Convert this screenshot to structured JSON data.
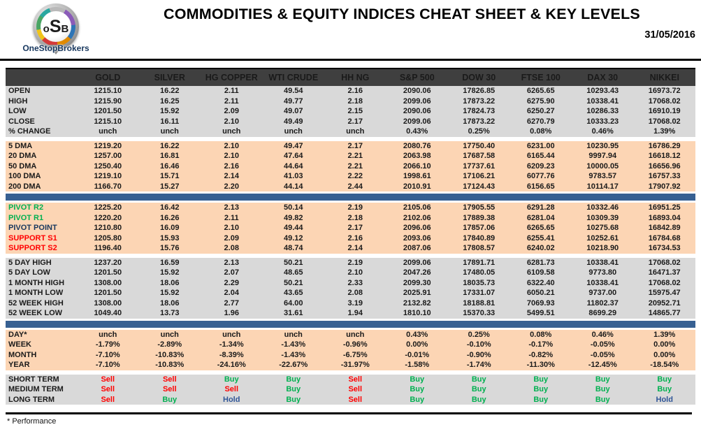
{
  "header": {
    "logo": {
      "monogram": [
        "o",
        "S",
        "B"
      ],
      "name": "OneStopBrokers"
    },
    "title": "COMMODITIES & EQUITY INDICES CHEAT SHEET & KEY LEVELS",
    "date": "31/05/2016"
  },
  "colors": {
    "header_bar": "#3F3F3F",
    "gray_row": "#D9D9D9",
    "peach_row": "#FCD5B4",
    "blue_band": "#376092",
    "green": "#00B050",
    "red": "#FF0000",
    "navy": "#17375E",
    "hold_blue": "#2F5597"
  },
  "table": {
    "columns": [
      "GOLD",
      "SILVER",
      "HG COPPER",
      "WTI CRUDE",
      "HH NG",
      "S&P 500",
      "DOW 30",
      "FTSE 100",
      "DAX 30",
      "NIKKEI"
    ],
    "sections": [
      {
        "id": "quotes",
        "bg": "gray",
        "divider": "none",
        "rows": [
          {
            "label": "OPEN",
            "values": [
              "1215.10",
              "16.22",
              "2.11",
              "49.54",
              "2.16",
              "2090.06",
              "17826.85",
              "6265.65",
              "10293.43",
              "16973.72"
            ]
          },
          {
            "label": "HIGH",
            "values": [
              "1215.90",
              "16.25",
              "2.11",
              "49.77",
              "2.18",
              "2099.06",
              "17873.22",
              "6275.90",
              "10338.41",
              "17068.02"
            ]
          },
          {
            "label": "LOW",
            "values": [
              "1201.50",
              "15.92",
              "2.09",
              "49.07",
              "2.15",
              "2090.06",
              "17824.73",
              "6250.27",
              "10286.33",
              "16910.19"
            ]
          },
          {
            "label": "CLOSE",
            "values": [
              "1215.10",
              "16.11",
              "2.10",
              "49.49",
              "2.17",
              "2099.06",
              "17873.22",
              "6270.79",
              "10333.23",
              "17068.02"
            ]
          },
          {
            "label": "% CHANGE",
            "values": [
              "unch",
              "unch",
              "unch",
              "unch",
              "unch",
              "0.43%",
              "0.25%",
              "0.08%",
              "0.46%",
              "1.39%"
            ]
          }
        ]
      },
      {
        "id": "moving-averages",
        "bg": "peach",
        "divider": "gap",
        "rows": [
          {
            "label": "5 DMA",
            "values": [
              "1219.20",
              "16.22",
              "2.10",
              "49.47",
              "2.17",
              "2080.76",
              "17750.40",
              "6231.00",
              "10230.95",
              "16786.29"
            ]
          },
          {
            "label": "20 DMA",
            "values": [
              "1257.00",
              "16.81",
              "2.10",
              "47.64",
              "2.21",
              "2063.98",
              "17687.58",
              "6165.44",
              "9997.94",
              "16618.12"
            ]
          },
          {
            "label": "50 DMA",
            "values": [
              "1250.40",
              "16.46",
              "2.16",
              "44.64",
              "2.21",
              "2066.10",
              "17737.61",
              "6209.23",
              "10000.05",
              "16656.96"
            ]
          },
          {
            "label": "100 DMA",
            "values": [
              "1219.10",
              "15.71",
              "2.14",
              "41.03",
              "2.22",
              "1998.61",
              "17106.21",
              "6077.76",
              "9783.57",
              "16757.33"
            ]
          },
          {
            "label": "200 DMA",
            "values": [
              "1166.70",
              "15.27",
              "2.20",
              "44.14",
              "2.44",
              "2010.91",
              "17124.43",
              "6156.65",
              "10114.17",
              "17907.92"
            ]
          }
        ]
      },
      {
        "id": "pivots",
        "bg": "peach",
        "divider": "blue",
        "rows": [
          {
            "label": "PIVOT R2",
            "label_color": "green",
            "values": [
              "1225.20",
              "16.42",
              "2.13",
              "50.14",
              "2.19",
              "2105.06",
              "17905.55",
              "6291.28",
              "10332.46",
              "16951.25"
            ]
          },
          {
            "label": "PIVOT R1",
            "label_color": "green",
            "values": [
              "1220.20",
              "16.26",
              "2.11",
              "49.82",
              "2.18",
              "2102.06",
              "17889.38",
              "6281.04",
              "10309.39",
              "16893.04"
            ]
          },
          {
            "label": "PIVOT POINT",
            "label_color": "navy",
            "values": [
              "1210.80",
              "16.09",
              "2.10",
              "49.44",
              "2.17",
              "2096.06",
              "17857.06",
              "6265.65",
              "10275.68",
              "16842.89"
            ]
          },
          {
            "label": "SUPPORT S1",
            "label_color": "red",
            "values": [
              "1205.80",
              "15.93",
              "2.09",
              "49.12",
              "2.16",
              "2093.06",
              "17840.89",
              "6255.41",
              "10252.61",
              "16784.68"
            ]
          },
          {
            "label": "SUPPORT S2",
            "label_color": "red",
            "values": [
              "1196.40",
              "15.76",
              "2.08",
              "48.74",
              "2.14",
              "2087.06",
              "17808.57",
              "6240.02",
              "10218.90",
              "16734.53"
            ]
          }
        ]
      },
      {
        "id": "ranges",
        "bg": "gray",
        "divider": "gap",
        "rows": [
          {
            "label": "5 DAY HIGH",
            "values": [
              "1237.20",
              "16.59",
              "2.13",
              "50.21",
              "2.19",
              "2099.06",
              "17891.71",
              "6281.73",
              "10338.41",
              "17068.02"
            ]
          },
          {
            "label": "5 DAY LOW",
            "values": [
              "1201.50",
              "15.92",
              "2.07",
              "48.65",
              "2.10",
              "2047.26",
              "17480.05",
              "6109.58",
              "9773.80",
              "16471.37"
            ]
          },
          {
            "label": "1 MONTH HIGH",
            "values": [
              "1308.00",
              "18.06",
              "2.29",
              "50.21",
              "2.33",
              "2099.30",
              "18035.73",
              "6322.40",
              "10338.41",
              "17068.02"
            ]
          },
          {
            "label": "1 MONTH LOW",
            "values": [
              "1201.50",
              "15.92",
              "2.04",
              "43.65",
              "2.08",
              "2025.91",
              "17331.07",
              "6050.21",
              "9737.00",
              "15975.47"
            ]
          },
          {
            "label": "52 WEEK HIGH",
            "values": [
              "1308.00",
              "18.06",
              "2.77",
              "64.00",
              "3.19",
              "2132.82",
              "18188.81",
              "7069.93",
              "11802.37",
              "20952.71"
            ]
          },
          {
            "label": "52 WEEK LOW",
            "values": [
              "1049.40",
              "13.73",
              "1.96",
              "31.61",
              "1.94",
              "1810.10",
              "15370.33",
              "5499.51",
              "8699.29",
              "14865.77"
            ]
          }
        ]
      },
      {
        "id": "performance",
        "bg": "peach",
        "divider": "blue",
        "rows": [
          {
            "label": "DAY*",
            "values": [
              "unch",
              "unch",
              "unch",
              "unch",
              "unch",
              "0.43%",
              "0.25%",
              "0.08%",
              "0.46%",
              "1.39%"
            ]
          },
          {
            "label": "WEEK",
            "values": [
              "-1.79%",
              "-2.89%",
              "-1.34%",
              "-1.43%",
              "-0.96%",
              "0.00%",
              "-0.10%",
              "-0.17%",
              "-0.05%",
              "0.00%"
            ]
          },
          {
            "label": "MONTH",
            "values": [
              "-7.10%",
              "-10.83%",
              "-8.39%",
              "-1.43%",
              "-6.75%",
              "-0.01%",
              "-0.90%",
              "-0.82%",
              "-0.05%",
              "0.00%"
            ]
          },
          {
            "label": "YEAR",
            "values": [
              "-7.10%",
              "-10.83%",
              "-24.16%",
              "-22.67%",
              "-31.97%",
              "-1.58%",
              "-1.74%",
              "-11.30%",
              "-12.45%",
              "-18.54%"
            ]
          }
        ]
      },
      {
        "id": "signals",
        "bg": "gray",
        "divider": "gap",
        "signal": true,
        "rows": [
          {
            "label": "SHORT TERM",
            "values": [
              "Sell",
              "Sell",
              "Buy",
              "Buy",
              "Sell",
              "Buy",
              "Buy",
              "Buy",
              "Buy",
              "Buy"
            ]
          },
          {
            "label": "MEDIUM TERM",
            "values": [
              "Sell",
              "Sell",
              "Sell",
              "Buy",
              "Sell",
              "Buy",
              "Buy",
              "Buy",
              "Buy",
              "Buy"
            ]
          },
          {
            "label": "LONG TERM",
            "values": [
              "Sell",
              "Buy",
              "Hold",
              "Buy",
              "Sell",
              "Buy",
              "Buy",
              "Buy",
              "Buy",
              "Hold"
            ]
          }
        ]
      }
    ]
  },
  "signal_colors": {
    "Sell": "sig-red",
    "Buy": "sig-green",
    "Hold": "sig-hold"
  },
  "footer": {
    "note": "* Performance"
  }
}
